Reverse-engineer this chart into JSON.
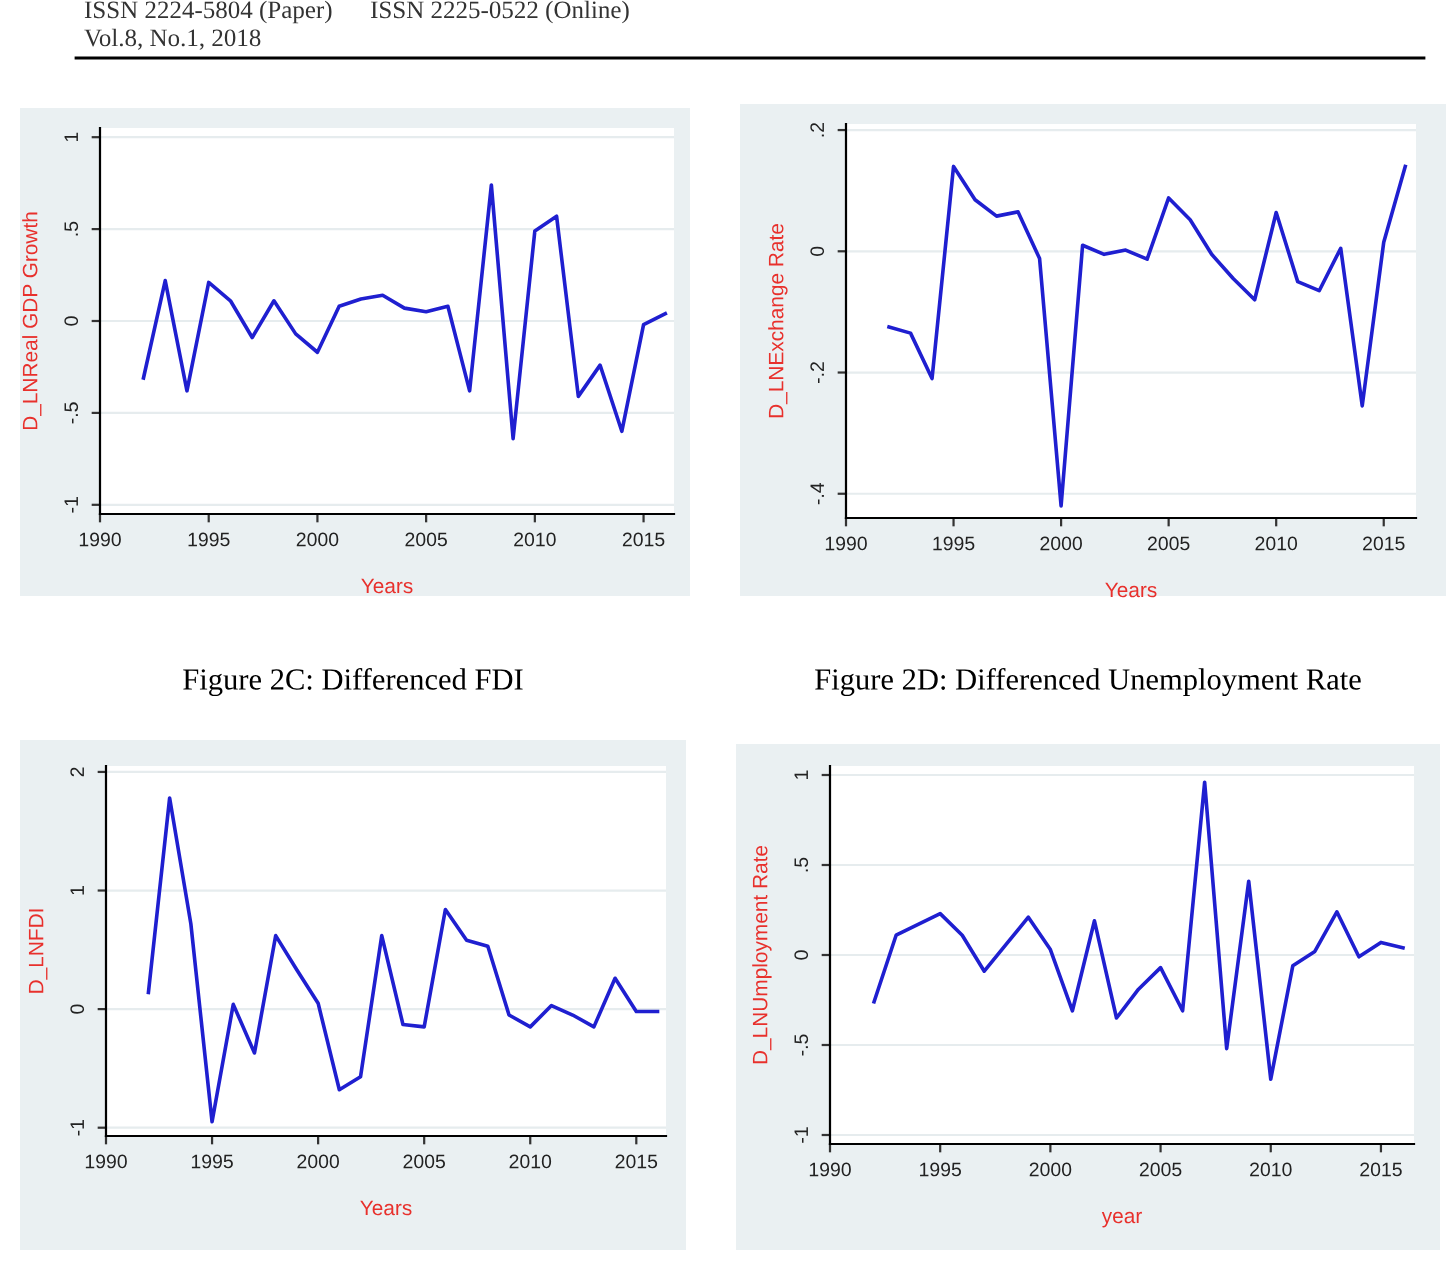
{
  "chart_data": [
    {
      "type": "line",
      "annotations": [
        "ISSN 2224-5804 (Paper)      ISSN 2225-0522 (Online)",
        "Vol.8, No.1, 2018"
      ],
      "xlabel": "Years",
      "ylabel": "D_LNReal GDP Growth",
      "grid": "y",
      "legend": false,
      "marker": "none",
      "line_style": "solid",
      "xlim": [
        1990,
        2016.4
      ],
      "xticks": [
        1990,
        1995,
        2000,
        2005,
        2010,
        2015
      ],
      "ylim": [
        -1.05,
        1.05
      ],
      "yticks": [
        -1,
        {
          "value": -0.5,
          "label": "-.5"
        },
        0,
        {
          "value": 0.5,
          "label": ".5"
        },
        1
      ],
      "x": [
        1992,
        1993,
        1994,
        1995,
        1996,
        1997,
        1998,
        1999,
        2000,
        2001,
        2002,
        2003,
        2004,
        2005,
        2006,
        2007,
        2008,
        2009,
        2010,
        2011,
        2012,
        2013,
        2014,
        2015,
        2016
      ],
      "series": [
        {
          "color": "#1f1fd0",
          "values": [
            -0.31,
            0.22,
            -0.38,
            0.21,
            0.11,
            -0.09,
            0.11,
            -0.07,
            -0.17,
            0.08,
            0.12,
            0.14,
            0.07,
            0.05,
            0.08,
            -0.38,
            0.74,
            -0.64,
            0.49,
            0.57,
            -0.41,
            -0.24,
            -0.6,
            -0.02,
            0.04
          ]
        }
      ]
    },
    {
      "type": "line",
      "xlabel": "Years",
      "ylabel": "D_LNExchange Rate",
      "grid": "y",
      "legend": false,
      "marker": "none",
      "line_style": "solid",
      "xlim": [
        1990,
        2016.5
      ],
      "xticks": [
        1990,
        1995,
        2000,
        2005,
        2010,
        2015
      ],
      "ylim": [
        -0.44,
        0.21
      ],
      "yticks": [
        {
          "value": -0.4,
          "label": "-.4"
        },
        {
          "value": -0.2,
          "label": "-.2"
        },
        0,
        {
          "value": 0.2,
          "label": ".2"
        }
      ],
      "x": [
        1992,
        1993,
        1994,
        1995,
        1996,
        1997,
        1998,
        1999,
        2000,
        2001,
        2002,
        2003,
        2004,
        2005,
        2006,
        2007,
        2008,
        2009,
        2010,
        2011,
        2012,
        2013,
        2014,
        2015,
        2016
      ],
      "series": [
        {
          "color": "#1f1fd0",
          "values": [
            -0.125,
            -0.135,
            -0.21,
            0.14,
            0.085,
            0.058,
            0.065,
            -0.012,
            -0.42,
            0.01,
            -0.005,
            0.002,
            -0.013,
            0.088,
            0.052,
            -0.005,
            -0.045,
            -0.08,
            0.064,
            -0.05,
            -0.065,
            0.005,
            -0.255,
            0.015,
            0.14
          ]
        }
      ]
    },
    {
      "type": "line",
      "title": "Figure 2C: Differenced FDI",
      "xlabel": "Years",
      "ylabel": "D_LNFDI",
      "grid": "y",
      "legend": false,
      "marker": "none",
      "line_style": "solid",
      "xlim": [
        1990,
        2016.4
      ],
      "xticks": [
        1990,
        1995,
        2000,
        2005,
        2010,
        2015
      ],
      "ylim": [
        -1.07,
        2.05
      ],
      "yticks": [
        -1,
        0,
        1,
        2
      ],
      "x": [
        1992,
        1993,
        1994,
        1995,
        1996,
        1997,
        1998,
        1999,
        2000,
        2001,
        2002,
        2003,
        2004,
        2005,
        2006,
        2007,
        2008,
        2009,
        2010,
        2011,
        2012,
        2013,
        2014,
        2015,
        2016
      ],
      "series": [
        {
          "color": "#1f1fd0",
          "values": [
            0.14,
            1.78,
            0.72,
            -0.95,
            0.04,
            -0.37,
            0.62,
            0.33,
            0.05,
            -0.68,
            -0.57,
            0.62,
            -0.13,
            -0.15,
            0.84,
            0.58,
            0.53,
            -0.05,
            -0.15,
            0.03,
            -0.05,
            -0.15,
            0.26,
            -0.02,
            -0.02
          ]
        }
      ]
    },
    {
      "type": "line",
      "title": "Figure 2D: Differenced Unemployment Rate",
      "xlabel": "year",
      "ylabel": "D_LNUmployment Rate",
      "grid": "y",
      "legend": false,
      "marker": "none",
      "line_style": "solid",
      "xlim": [
        1990,
        2016.5
      ],
      "xticks": [
        1990,
        1995,
        2000,
        2005,
        2010,
        2015
      ],
      "ylim": [
        -1.05,
        1.05
      ],
      "yticks": [
        -1,
        {
          "value": -0.5,
          "label": "-.5"
        },
        0,
        {
          "value": 0.5,
          "label": ".5"
        },
        1
      ],
      "x": [
        1992,
        1993,
        1994,
        1995,
        1996,
        1997,
        1998,
        1999,
        2000,
        2001,
        2002,
        2003,
        2004,
        2005,
        2006,
        2007,
        2008,
        2009,
        2010,
        2011,
        2012,
        2013,
        2014,
        2015,
        2016
      ],
      "series": [
        {
          "color": "#1f1fd0",
          "values": [
            -0.26,
            0.11,
            0.17,
            0.23,
            0.11,
            -0.09,
            0.06,
            0.21,
            0.03,
            -0.31,
            0.19,
            -0.35,
            -0.19,
            -0.07,
            -0.31,
            0.96,
            -0.52,
            0.41,
            -0.69,
            -0.06,
            0.02,
            0.24,
            -0.01,
            0.07,
            0.04
          ]
        }
      ]
    }
  ]
}
